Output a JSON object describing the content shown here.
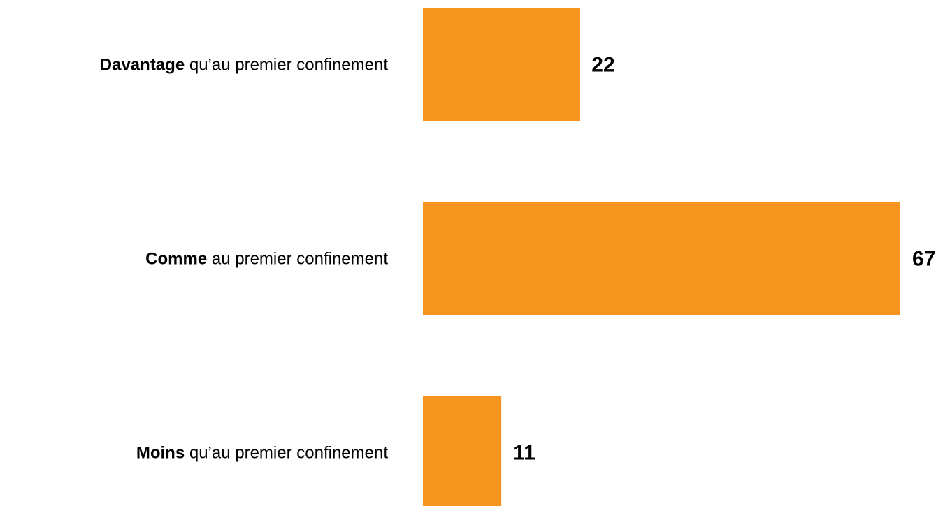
{
  "chart_data": {
    "type": "hbar",
    "categories": [
      "Davantage qu’au premier confinement",
      "Comme au premier confinement",
      "Moins qu’au premier confinement"
    ],
    "values": [
      22,
      67,
      11
    ],
    "color": "#f7941e"
  }
}
